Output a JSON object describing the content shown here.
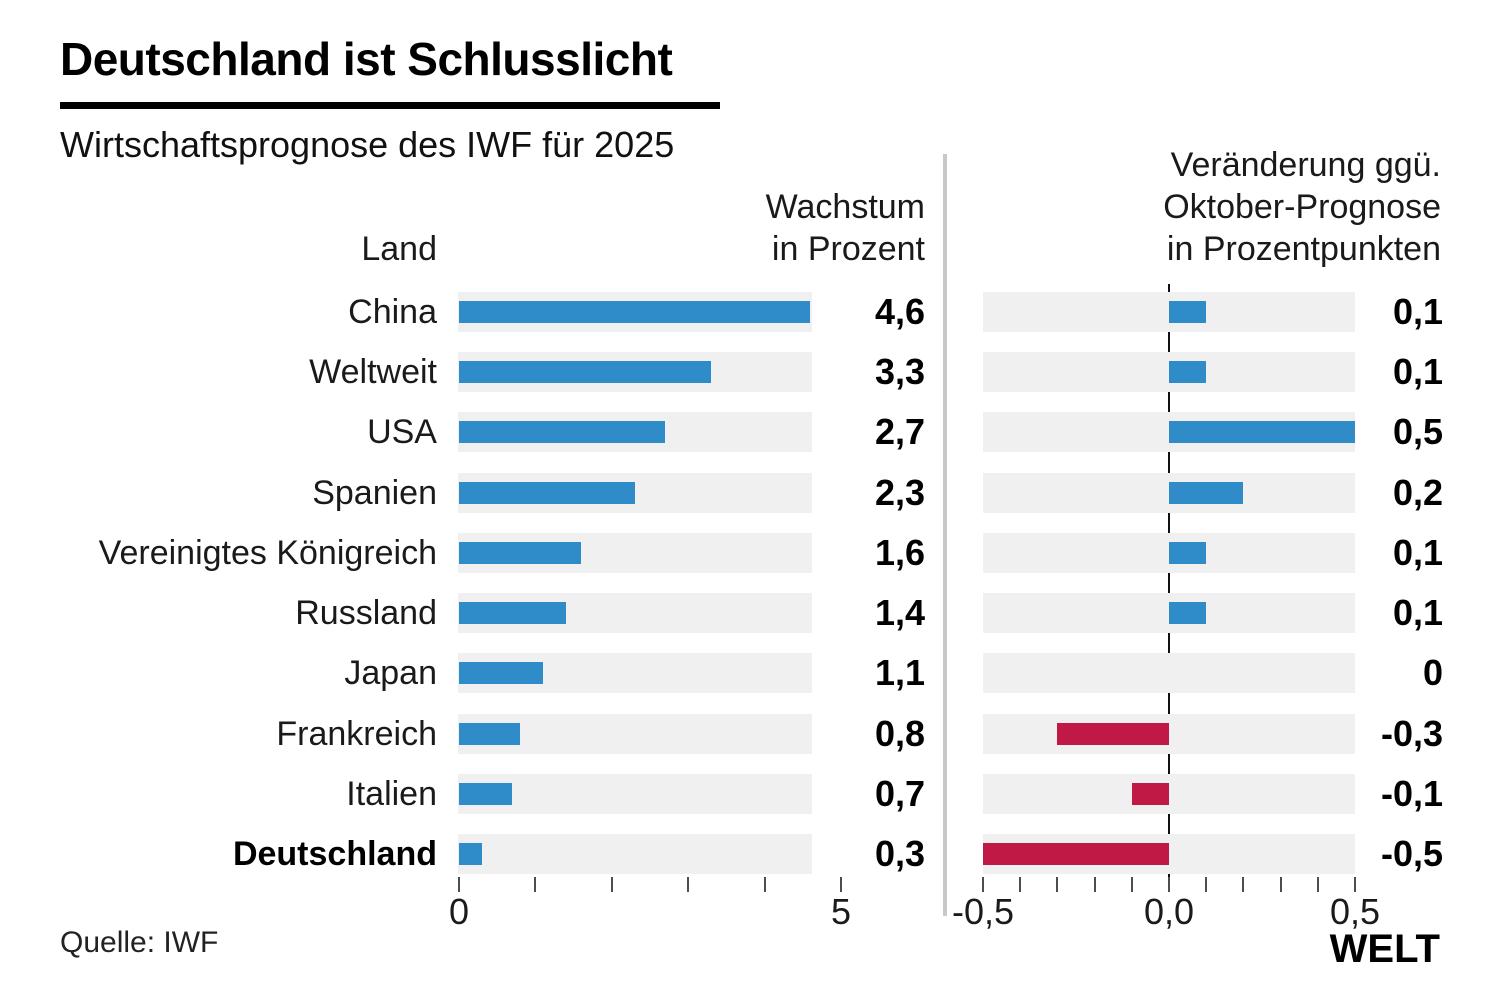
{
  "title": "Deutschland ist Schlusslicht",
  "subtitle": "Wirtschaftsprognose des IWF für 2025",
  "source": "Quelle: IWF",
  "brand": "WELT",
  "colors": {
    "positive": "#308cc8",
    "negative": "#c01946",
    "track": "#f0f0f0",
    "divider": "#c8c8c8"
  },
  "left_chart": {
    "country_header": "Land",
    "value_header": [
      "Wachstum",
      "in Prozent"
    ],
    "tick_values": [
      0,
      1,
      2,
      3,
      4,
      5
    ],
    "axis_labels": [
      {
        "v": 0,
        "label": "0"
      },
      {
        "v": 5,
        "label": "5"
      }
    ]
  },
  "right_chart": {
    "header": [
      "Veränderung ggü.",
      "Oktober-Prognose",
      "in Prozentpunkten"
    ],
    "tick_values": [
      -0.5,
      -0.4,
      -0.3,
      -0.2,
      -0.1,
      0,
      0.1,
      0.2,
      0.3,
      0.4,
      0.5
    ],
    "axis_labels": [
      {
        "v": -0.5,
        "label": "-0,5"
      },
      {
        "v": 0,
        "label": "0,0"
      },
      {
        "v": 0.5,
        "label": "0,5"
      }
    ]
  },
  "chart_data": {
    "type": "bar",
    "orientation": "horizontal",
    "categories": [
      "China",
      "Weltweit",
      "USA",
      "Spanien",
      "Vereinigtes Königreich",
      "Russland",
      "Japan",
      "Frankreich",
      "Italien",
      "Deutschland"
    ],
    "highlight_category": "Deutschland",
    "series": [
      {
        "name": "Wachstum in Prozent",
        "xlim": [
          0,
          5
        ],
        "values": [
          4.6,
          3.3,
          2.7,
          2.3,
          1.6,
          1.4,
          1.1,
          0.8,
          0.7,
          0.3
        ],
        "labels": [
          "4,6",
          "3,3",
          "2,7",
          "2,3",
          "1,6",
          "1,4",
          "1,1",
          "0,8",
          "0,7",
          "0,3"
        ]
      },
      {
        "name": "Veränderung ggü. Oktober-Prognose in Prozentpunkten",
        "xlim": [
          -0.5,
          0.5
        ],
        "values": [
          0.1,
          0.1,
          0.5,
          0.2,
          0.1,
          0.1,
          0,
          -0.3,
          -0.1,
          -0.5
        ],
        "labels": [
          "0,1",
          "0,1",
          "0,5",
          "0,2",
          "0,1",
          "0,1",
          "0",
          "-0,3",
          "-0,1",
          "-0,5"
        ]
      }
    ]
  }
}
